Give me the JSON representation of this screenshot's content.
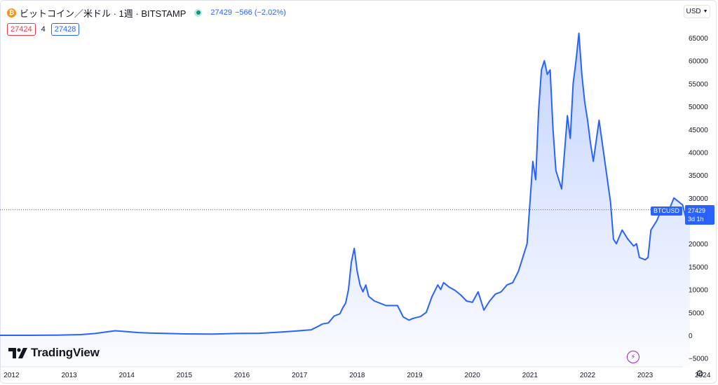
{
  "legend": {
    "coin_glyph": "₿",
    "symbol": "ビットコイン／米ドル · 1週 · BITSTAMP",
    "price": "27429",
    "change": "−566 (−2.02%)",
    "bid": "27424",
    "spread": "4",
    "ask": "27428"
  },
  "currency": {
    "label": "USD"
  },
  "colors": {
    "line": "#2962ff",
    "bid": "#f23645",
    "live": "#089981",
    "replay": "#9c27b0"
  },
  "price_tag": {
    "symbol": "BTCUSD",
    "price": "27429",
    "countdown": "3d 1h"
  },
  "brand": {
    "logo_text": "TradingView"
  },
  "icons": {
    "settings": "gear-icon",
    "replay": "lightning-icon",
    "currency_menu": "chevron-down-icon"
  },
  "chart_data": {
    "type": "area",
    "title": "",
    "xlabel": "",
    "ylabel": "",
    "x_ticks": [
      "2012",
      "2013",
      "2014",
      "2015",
      "2016",
      "2017",
      "2018",
      "2019",
      "2020",
      "2021",
      "2022",
      "2023",
      "2024"
    ],
    "y_ticks": [
      -5000,
      0,
      5000,
      10000,
      15000,
      20000,
      25000,
      30000,
      35000,
      40000,
      45000,
      50000,
      55000,
      60000,
      65000
    ],
    "xlim": [
      2011.8,
      2024.8
    ],
    "ylim": [
      -6000,
      68000
    ],
    "grid": false,
    "last_price": 27429,
    "series": [
      {
        "name": "",
        "x": [
          2011.8,
          2012.3,
          2012.8,
          2013.2,
          2013.45,
          2013.8,
          2013.9,
          2014.0,
          2014.2,
          2014.4,
          2014.7,
          2015.0,
          2015.5,
          2015.9,
          2016.3,
          2016.6,
          2016.9,
          2017.0,
          2017.1,
          2017.2,
          2017.3,
          2017.4,
          2017.5,
          2017.6,
          2017.7,
          2017.75,
          2017.8,
          2017.85,
          2017.9,
          2017.95,
          2018.0,
          2018.05,
          2018.1,
          2018.15,
          2018.2,
          2018.3,
          2018.4,
          2018.5,
          2018.6,
          2018.7,
          2018.8,
          2018.9,
          2018.95,
          2019.0,
          2019.1,
          2019.2,
          2019.3,
          2019.4,
          2019.45,
          2019.5,
          2019.6,
          2019.7,
          2019.8,
          2019.9,
          2020.0,
          2020.1,
          2020.2,
          2020.3,
          2020.4,
          2020.5,
          2020.6,
          2020.7,
          2020.8,
          2020.85,
          2020.9,
          2020.95,
          2021.0,
          2021.05,
          2021.1,
          2021.15,
          2021.2,
          2021.25,
          2021.3,
          2021.35,
          2021.4,
          2021.45,
          2021.5,
          2021.55,
          2021.6,
          2021.65,
          2021.7,
          2021.75,
          2021.8,
          2021.85,
          2021.9,
          2021.95,
          2022.0,
          2022.05,
          2022.1,
          2022.2,
          2022.3,
          2022.4,
          2022.45,
          2022.5,
          2022.6,
          2022.7,
          2022.8,
          2022.85,
          2022.9,
          2023.0,
          2023.05,
          2023.1,
          2023.2,
          2023.3,
          2023.4,
          2023.5,
          2023.55,
          2023.6,
          2023.65,
          2023.7,
          2023.75,
          2023.78
        ],
        "values": [
          0,
          0,
          50,
          150,
          400,
          1000,
          900,
          800,
          600,
          500,
          400,
          300,
          280,
          400,
          450,
          650,
          900,
          1000,
          1100,
          1200,
          1800,
          2500,
          2700,
          4200,
          4700,
          6000,
          7000,
          10000,
          16000,
          19000,
          14000,
          11000,
          9500,
          11000,
          8500,
          7500,
          7000,
          6500,
          6500,
          6500,
          4000,
          3300,
          3600,
          3800,
          4100,
          5000,
          8500,
          11000,
          10000,
          11500,
          10500,
          9800,
          8800,
          7500,
          7200,
          9500,
          5500,
          7500,
          9000,
          9500,
          11000,
          11500,
          14000,
          16000,
          18000,
          20000,
          29000,
          38000,
          34000,
          49000,
          58000,
          60000,
          57000,
          58000,
          45000,
          36000,
          34000,
          32000,
          40000,
          48000,
          43000,
          55000,
          60000,
          66000,
          57000,
          51000,
          47000,
          42000,
          38000,
          47000,
          38000,
          29000,
          21000,
          20000,
          23000,
          21000,
          19500,
          20000,
          17000,
          16500,
          17000,
          23000,
          25000,
          28000,
          27000,
          30000,
          29500,
          29000,
          28500,
          26000,
          26000,
          27429
        ]
      }
    ]
  }
}
